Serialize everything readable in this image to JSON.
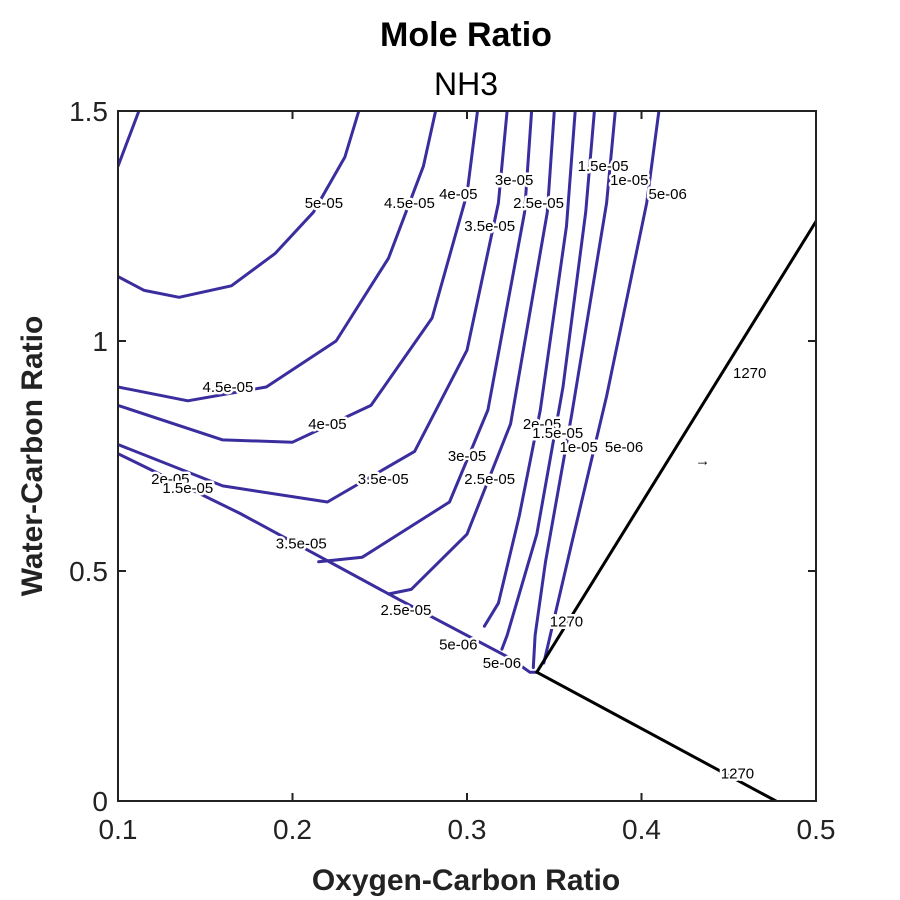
{
  "chart_data": {
    "type": "contour",
    "title": "Mole Ratio",
    "subtitle": "NH3",
    "xlabel": "Oxygen-Carbon Ratio",
    "ylabel": "Water-Carbon Ratio",
    "xlim": [
      0.1,
      0.5
    ],
    "ylim": [
      0,
      1.5
    ],
    "xticks": [
      "0.1",
      "0.2",
      "0.3",
      "0.4",
      "0.5"
    ],
    "yticks": [
      "0",
      "0.5",
      "1",
      "1.5"
    ],
    "xtick_values": [
      0.1,
      0.2,
      0.3,
      0.4,
      0.5
    ],
    "ytick_values": [
      0,
      0.5,
      1,
      1.5
    ],
    "colors": {
      "nh3": "#3a2d9e",
      "temperature": "#000000"
    },
    "series": [
      {
        "name": "5e-05",
        "color": "#3a2d9e",
        "lines": [
          [
            [
              0.112,
              1.5
            ],
            [
              0.1,
              1.38
            ]
          ],
          [
            [
              0.238,
              1.5
            ],
            [
              0.23,
              1.4
            ],
            [
              0.212,
              1.28
            ],
            [
              0.19,
              1.19
            ],
            [
              0.165,
              1.12
            ],
            [
              0.135,
              1.095
            ],
            [
              0.115,
              1.11
            ],
            [
              0.1,
              1.14
            ]
          ]
        ],
        "labels": [
          {
            "text": "5e-05",
            "x": 0.218,
            "y": 1.3
          }
        ]
      },
      {
        "name": "4.5e-05",
        "color": "#3a2d9e",
        "lines": [
          [
            [
              0.282,
              1.5
            ],
            [
              0.275,
              1.38
            ],
            [
              0.255,
              1.18
            ],
            [
              0.225,
              1.0
            ],
            [
              0.185,
              0.9
            ],
            [
              0.14,
              0.87
            ],
            [
              0.1,
              0.9
            ]
          ]
        ],
        "labels": [
          {
            "text": "4.5e-05",
            "x": 0.267,
            "y": 1.3
          },
          {
            "text": "4.5e-05",
            "x": 0.163,
            "y": 0.9
          }
        ]
      },
      {
        "name": "4e-05",
        "color": "#3a2d9e",
        "lines": [
          [
            [
              0.306,
              1.5
            ],
            [
              0.3,
              1.32
            ],
            [
              0.28,
              1.05
            ],
            [
              0.245,
              0.86
            ],
            [
              0.2,
              0.78
            ],
            [
              0.16,
              0.785
            ],
            [
              0.1,
              0.86
            ]
          ]
        ],
        "labels": [
          {
            "text": "4e-05",
            "x": 0.295,
            "y": 1.32
          },
          {
            "text": "4e-05",
            "x": 0.22,
            "y": 0.82
          }
        ]
      },
      {
        "name": "3.5e-05",
        "color": "#3a2d9e",
        "lines": [
          [
            [
              0.323,
              1.5
            ],
            [
              0.318,
              1.3
            ],
            [
              0.3,
              0.98
            ],
            [
              0.27,
              0.76
            ],
            [
              0.22,
              0.65
            ],
            [
              0.16,
              0.685
            ],
            [
              0.1,
              0.775
            ]
          ]
        ],
        "labels": [
          {
            "text": "3.5e-05",
            "x": 0.313,
            "y": 1.25
          },
          {
            "text": "3.5e-05",
            "x": 0.252,
            "y": 0.7
          }
        ]
      },
      {
        "name": "3e-05",
        "color": "#3a2d9e",
        "lines": [
          [
            [
              0.337,
              1.5
            ],
            [
              0.333,
              1.28
            ],
            [
              0.312,
              0.85
            ],
            [
              0.29,
              0.65
            ],
            [
              0.24,
              0.53
            ],
            [
              0.215,
              0.52
            ]
          ]
        ],
        "labels": [
          {
            "text": "3e-05",
            "x": 0.327,
            "y": 1.35
          },
          {
            "text": "3e-05",
            "x": 0.3,
            "y": 0.75
          }
        ]
      },
      {
        "name": "2.5e-05",
        "color": "#3a2d9e",
        "lines": [
          [
            [
              0.35,
              1.5
            ],
            [
              0.346,
              1.28
            ],
            [
              0.325,
              0.82
            ],
            [
              0.3,
              0.58
            ],
            [
              0.268,
              0.46
            ],
            [
              0.255,
              0.45
            ]
          ]
        ],
        "labels": [
          {
            "text": "2.5e-05",
            "x": 0.341,
            "y": 1.3
          },
          {
            "text": "2.5e-05",
            "x": 0.313,
            "y": 0.7
          }
        ]
      },
      {
        "name": "2e-05",
        "color": "#3a2d9e",
        "lines": [
          [
            [
              0.362,
              1.5
            ],
            [
              0.357,
              1.25
            ],
            [
              0.342,
              0.85
            ],
            [
              0.33,
              0.62
            ],
            [
              0.318,
              0.43
            ],
            [
              0.31,
              0.38
            ]
          ]
        ],
        "labels": [
          {
            "text": "2e-05",
            "x": 0.343,
            "y": 0.82
          }
        ]
      },
      {
        "name": "1.5e-05",
        "color": "#3a2d9e",
        "lines": [
          [
            [
              0.373,
              1.5
            ],
            [
              0.368,
              1.28
            ],
            [
              0.355,
              0.9
            ],
            [
              0.34,
              0.58
            ],
            [
              0.323,
              0.36
            ],
            [
              0.32,
              0.33
            ]
          ]
        ],
        "labels": [
          {
            "text": "1.5e-05",
            "x": 0.378,
            "y": 1.38
          },
          {
            "text": "1.5e-05",
            "x": 0.352,
            "y": 0.8
          }
        ]
      },
      {
        "name": "1e-05",
        "color": "#3a2d9e",
        "lines": [
          [
            [
              0.385,
              1.5
            ],
            [
              0.38,
              1.3
            ],
            [
              0.36,
              0.84
            ],
            [
              0.345,
              0.52
            ],
            [
              0.339,
              0.36
            ],
            [
              0.338,
              0.29
            ]
          ]
        ],
        "labels": [
          {
            "text": "1e-05",
            "x": 0.393,
            "y": 1.35
          },
          {
            "text": "1e-05",
            "x": 0.364,
            "y": 0.77
          }
        ]
      },
      {
        "name": "5e-06",
        "color": "#3a2d9e",
        "lines": [
          [
            [
              0.41,
              1.5
            ],
            [
              0.403,
              1.3
            ],
            [
              0.38,
              0.88
            ],
            [
              0.36,
              0.56
            ],
            [
              0.344,
              0.3
            ]
          ]
        ],
        "labels": [
          {
            "text": "5e-06",
            "x": 0.415,
            "y": 1.32
          },
          {
            "text": "5e-06",
            "x": 0.39,
            "y": 0.77
          }
        ]
      },
      {
        "name": "5e-06",
        "color": "#3a2d9e",
        "lines": [
          [
            [
              0.1,
              0.755
            ],
            [
              0.17,
              0.625
            ],
            [
              0.26,
              0.44
            ],
            [
              0.325,
              0.31
            ],
            [
              0.336,
              0.28
            ],
            [
              0.34,
              0.28
            ]
          ]
        ],
        "labels": [
          {
            "text": "2e-05",
            "x": 0.13,
            "y": 0.7
          },
          {
            "text": "1.5e-05",
            "x": 0.14,
            "y": 0.68
          },
          {
            "text": "3.5e-05",
            "x": 0.205,
            "y": 0.56
          },
          {
            "text": "5e-06",
            "x": 0.295,
            "y": 0.34
          },
          {
            "text": "2.5e-05",
            "x": 0.265,
            "y": 0.415
          },
          {
            "text": "5e-06",
            "x": 0.32,
            "y": 0.3
          }
        ]
      },
      {
        "name": "1270",
        "color": "#000000",
        "lines": [
          [
            [
              0.34,
              0.28
            ],
            [
              0.5,
              1.26
            ]
          ],
          [
            [
              0.34,
              0.28
            ],
            [
              0.477,
              0
            ]
          ]
        ],
        "labels": [
          {
            "text": "1270",
            "x": 0.462,
            "y": 0.93
          },
          {
            "text": "1270",
            "x": 0.357,
            "y": 0.39
          },
          {
            "text": "1270",
            "x": 0.455,
            "y": 0.06
          }
        ]
      }
    ],
    "annotations": [
      {
        "text": "→",
        "x": 0.435,
        "y": 0.74
      }
    ]
  }
}
